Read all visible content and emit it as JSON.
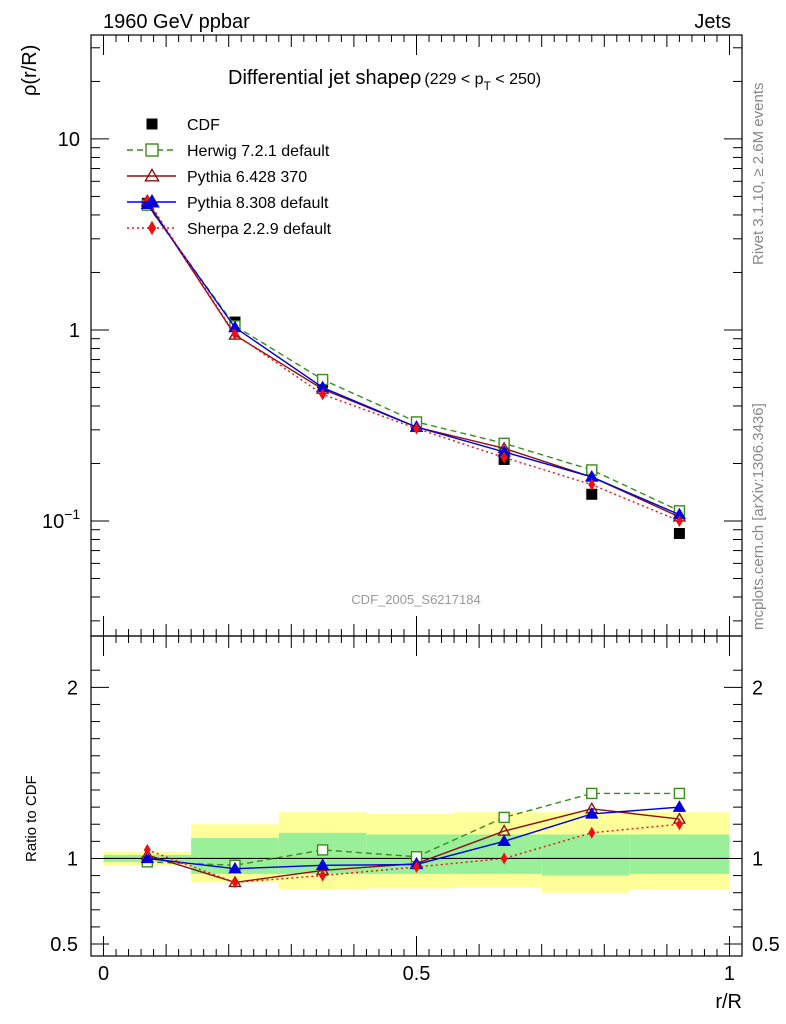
{
  "header": {
    "energy_label": "1960 GeV ppbar",
    "process_label": "Jets",
    "title_main": "Differential jet shape",
    "title_rho": "ρ",
    "title_cut_left": "(229 < p",
    "title_cut_sub": "T",
    "title_cut_right": " < 250)",
    "side_rivet": "Rivet 3.1.10, ≥ 2.6M events",
    "side_mcplots": "mcplots.cern.ch [arXiv:1306.3436]",
    "analysis_id": "CDF_2005_S6217184"
  },
  "chart_data": [
    {
      "type": "line",
      "panel": "main",
      "ylabel": "ρ(r/R)",
      "yscale": "log",
      "xlim": [
        -0.02,
        1.02
      ],
      "ylim": [
        0.025,
        35
      ],
      "yticks": [
        {
          "value": 0.1,
          "label": "10",
          "exp": "−1"
        },
        {
          "value": 1,
          "label": "1",
          "exp": ""
        },
        {
          "value": 10,
          "label": "10",
          "exp": ""
        }
      ],
      "x": [
        0.07,
        0.21,
        0.35,
        0.5,
        0.64,
        0.78,
        0.92
      ],
      "series": [
        {
          "name": "CDF",
          "color": "#000000",
          "marker": "square-filled",
          "line": "none",
          "values": [
            4.6,
            1.1,
            0.53,
            0.32,
            0.21,
            0.138,
            0.086
          ]
        },
        {
          "name": "Herwig 7.2.1 default",
          "color": "#3a8c1c",
          "marker": "square-open",
          "line": "dashed",
          "values": [
            4.5,
            1.05,
            0.55,
            0.33,
            0.255,
            0.185,
            0.113
          ]
        },
        {
          "name": "Pythia 6.428 370",
          "color": "#8b1010",
          "marker": "triangle-open",
          "line": "solid",
          "values": [
            4.7,
            0.94,
            0.49,
            0.31,
            0.24,
            0.17,
            0.105
          ]
        },
        {
          "name": "Pythia 8.308 default",
          "color": "#0000dd",
          "marker": "triangle-filled",
          "line": "solid",
          "values": [
            4.55,
            1.03,
            0.5,
            0.31,
            0.23,
            0.17,
            0.108
          ]
        },
        {
          "name": "Sherpa 2.2.9 default",
          "color": "#ee1010",
          "marker": "diamond-filled",
          "line": "dotted",
          "values": [
            4.8,
            0.95,
            0.46,
            0.305,
            0.215,
            0.155,
            0.1
          ]
        }
      ]
    },
    {
      "type": "line",
      "panel": "ratio",
      "xlabel": "r/R",
      "ylabel": "Ratio to CDF",
      "xlim": [
        -0.02,
        1.02
      ],
      "ylim": [
        0.43,
        2.3
      ],
      "xticks": [
        {
          "value": 0,
          "label": "0"
        },
        {
          "value": 0.5,
          "label": "0.5"
        },
        {
          "value": 1,
          "label": "1"
        }
      ],
      "yticks": [
        {
          "value": 0.5,
          "label": "0.5"
        },
        {
          "value": 1,
          "label": "1"
        },
        {
          "value": 2,
          "label": "2"
        }
      ],
      "bins": [
        0,
        0.14,
        0.28,
        0.42,
        0.56,
        0.7,
        0.84,
        1.0
      ],
      "band_outer_low": [
        0.96,
        0.86,
        0.82,
        0.825,
        0.83,
        0.8,
        0.82
      ],
      "band_outer_high": [
        1.04,
        1.2,
        1.27,
        1.26,
        1.27,
        1.27,
        1.27
      ],
      "band_inner_low": [
        0.98,
        0.91,
        0.91,
        0.91,
        0.91,
        0.9,
        0.91
      ],
      "band_inner_high": [
        1.02,
        1.12,
        1.15,
        1.14,
        1.14,
        1.14,
        1.14
      ],
      "x": [
        0.07,
        0.21,
        0.35,
        0.5,
        0.64,
        0.78,
        0.92
      ],
      "series": [
        {
          "name": "Herwig 7.2.1 default",
          "color": "#3a8c1c",
          "marker": "square-open",
          "line": "dashed",
          "values": [
            0.98,
            0.96,
            1.05,
            1.01,
            1.24,
            1.38,
            1.38
          ]
        },
        {
          "name": "Pythia 6.428 370",
          "color": "#8b1010",
          "marker": "triangle-open",
          "line": "solid",
          "values": [
            1.02,
            0.86,
            0.93,
            0.97,
            1.16,
            1.29,
            1.23
          ]
        },
        {
          "name": "Pythia 8.308 default",
          "color": "#0000dd",
          "marker": "triangle-filled",
          "line": "solid",
          "values": [
            1.0,
            0.94,
            0.96,
            0.965,
            1.1,
            1.26,
            1.3
          ]
        },
        {
          "name": "Sherpa 2.2.9 default",
          "color": "#ee1010",
          "marker": "diamond-filled",
          "line": "dotted",
          "values": [
            1.05,
            0.86,
            0.9,
            0.95,
            1.0,
            1.15,
            1.2
          ]
        }
      ]
    }
  ]
}
